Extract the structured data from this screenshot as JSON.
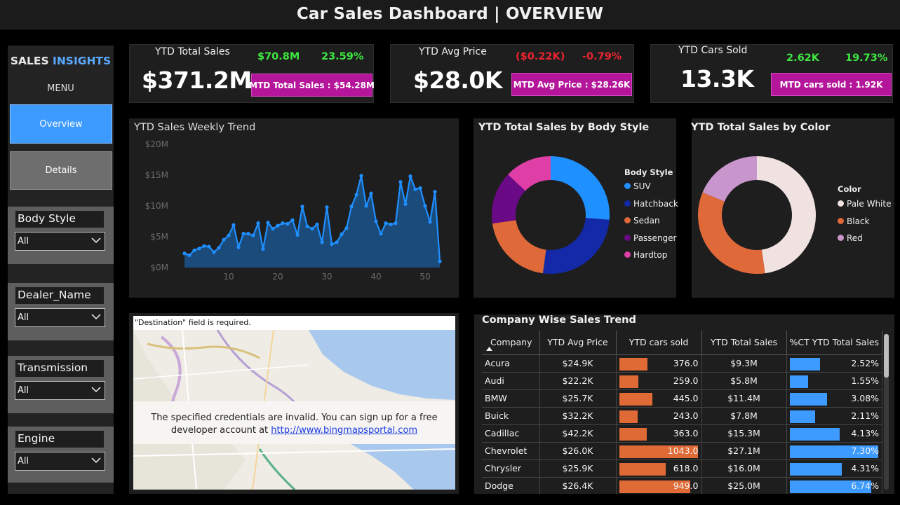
{
  "header": {
    "title": "Car Sales Dashboard | OVERVIEW"
  },
  "sidebar": {
    "brand_part1": "SALES",
    "brand_part2": "INSIGHTS",
    "menu_label": "MENU",
    "nav": {
      "overview": "Overview",
      "details": "Details"
    },
    "slicers": [
      {
        "label": "Body Style",
        "value": "All"
      },
      {
        "label": "Dealer_Name",
        "value": "All"
      },
      {
        "label": "Transmission",
        "value": "All"
      },
      {
        "label": "Engine",
        "value": "All"
      }
    ]
  },
  "kpis": [
    {
      "title": "YTD Total Sales",
      "value": "$371.2M",
      "delta_abs": "$70.8M",
      "delta_pct": "23.59%",
      "mtd": "MTD Total Sales : $54.28M",
      "trend": "up"
    },
    {
      "title": "YTD Avg Price",
      "value": "$28.0K",
      "delta_abs": "($0.22K)",
      "delta_pct": "-0.79%",
      "mtd": "MTD Avg Price : $28.26K",
      "trend": "down"
    },
    {
      "title": "YTD Cars Sold",
      "value": "13.3K",
      "delta_abs": "2.62K",
      "delta_pct": "19.73%",
      "mtd": "MTD cars sold : 1.92K",
      "trend": "up"
    }
  ],
  "colors": {
    "green": "#3ee640",
    "red": "#e8242f",
    "mtd_bg": "#b4159a",
    "accent": "#3d9bff",
    "area_fill": "#1b4b7a",
    "line": "#1f8fff",
    "table_bar_orange": "#e06a35",
    "table_bar_blue": "#3d9bff"
  },
  "chart_data": [
    {
      "type": "area",
      "title": "YTD Sales Weekly Trend",
      "xlabel": "",
      "ylabel": "",
      "x_ticks": [
        "10",
        "20",
        "30",
        "40",
        "50"
      ],
      "y_ticks": [
        "$0M",
        "$5M",
        "$10M",
        "$15M",
        "$20M"
      ],
      "ylim": [
        0,
        20
      ],
      "xlim": [
        0,
        54
      ],
      "x": [
        1,
        2,
        3,
        4,
        5,
        6,
        7,
        8,
        9,
        10,
        11,
        12,
        13,
        14,
        15,
        16,
        17,
        18,
        19,
        20,
        21,
        22,
        23,
        24,
        25,
        26,
        27,
        28,
        29,
        30,
        31,
        32,
        33,
        34,
        35,
        36,
        37,
        38,
        39,
        40,
        41,
        42,
        43,
        44,
        45,
        46,
        47,
        48,
        49,
        50,
        51,
        52,
        53
      ],
      "values": [
        2.3,
        2.0,
        2.8,
        3.1,
        3.5,
        3.4,
        2.5,
        3.2,
        4.5,
        5.2,
        6.9,
        3.3,
        5.5,
        5.5,
        5.2,
        7.2,
        3.0,
        7.3,
        6.3,
        6.8,
        7.2,
        7.1,
        7.7,
        5.3,
        9.9,
        6.7,
        6.3,
        7.0,
        4.1,
        9.8,
        3.8,
        4.1,
        5.4,
        6.4,
        9.9,
        11.8,
        14.9,
        10.0,
        12.0,
        7.5,
        5.5,
        7.2,
        7.0,
        7.2,
        13.9,
        10.3,
        14.8,
        12.7,
        12.9,
        10.0,
        7.4,
        12.3,
        1.0
      ],
      "grid": false
    },
    {
      "type": "pie",
      "donut": true,
      "title": "YTD Total Sales by Body Style",
      "legend_title": "Body Style",
      "legend_position": "right",
      "labels": [
        "SUV",
        "Hatchback",
        "Sedan",
        "Passenger",
        "Hardtop"
      ],
      "values": [
        26.3,
        25.8,
        20.6,
        14.4,
        12.9
      ],
      "colors": [
        "#1e90ff",
        "#1429a8",
        "#e0693a",
        "#6b0a86",
        "#de3ea6"
      ]
    },
    {
      "type": "pie",
      "donut": true,
      "title": "YTD Total Sales by Color",
      "legend_title": "Color",
      "legend_position": "right",
      "labels": [
        "Pale White",
        "Black",
        "Red"
      ],
      "values": [
        47.8,
        33.5,
        18.7
      ],
      "colors": [
        "#f1e2e2",
        "#e0693a",
        "#c896cc"
      ]
    },
    {
      "type": "table",
      "title": "Company Wise Sales Trend",
      "columns": [
        "Company",
        "YTD Avg Price",
        "YTD cars sold",
        "YTD Total Sales",
        "%CT YTD Total Sales"
      ],
      "rows": [
        [
          "Acura",
          "$24.9K",
          "376.0",
          "$9.3M",
          "2.52%"
        ],
        [
          "Audi",
          "$22.2K",
          "259.0",
          "$5.8M",
          "1.55%"
        ],
        [
          "BMW",
          "$25.7K",
          "445.0",
          "$11.4M",
          "3.08%"
        ],
        [
          "Buick",
          "$32.2K",
          "243.0",
          "$7.8M",
          "2.11%"
        ],
        [
          "Cadillac",
          "$42.2K",
          "363.0",
          "$15.3M",
          "4.13%"
        ],
        [
          "Chevrolet",
          "$26.0K",
          "1043.0",
          "$27.1M",
          "7.30%"
        ],
        [
          "Chrysler",
          "$25.9K",
          "618.0",
          "$16.0M",
          "4.31%"
        ],
        [
          "Dodge",
          "$26.4K",
          "949.0",
          "$25.0M",
          "6.74%"
        ]
      ],
      "cars_sold_max": 1043,
      "pct_max": 7.3
    }
  ],
  "map": {
    "required_msg": "\"Destination\" field is required.",
    "error_line1": "The specified credentials are invalid. You can sign up for a free",
    "error_line2": "developer account at",
    "error_link": "http://www.bingmapsportal.com"
  }
}
